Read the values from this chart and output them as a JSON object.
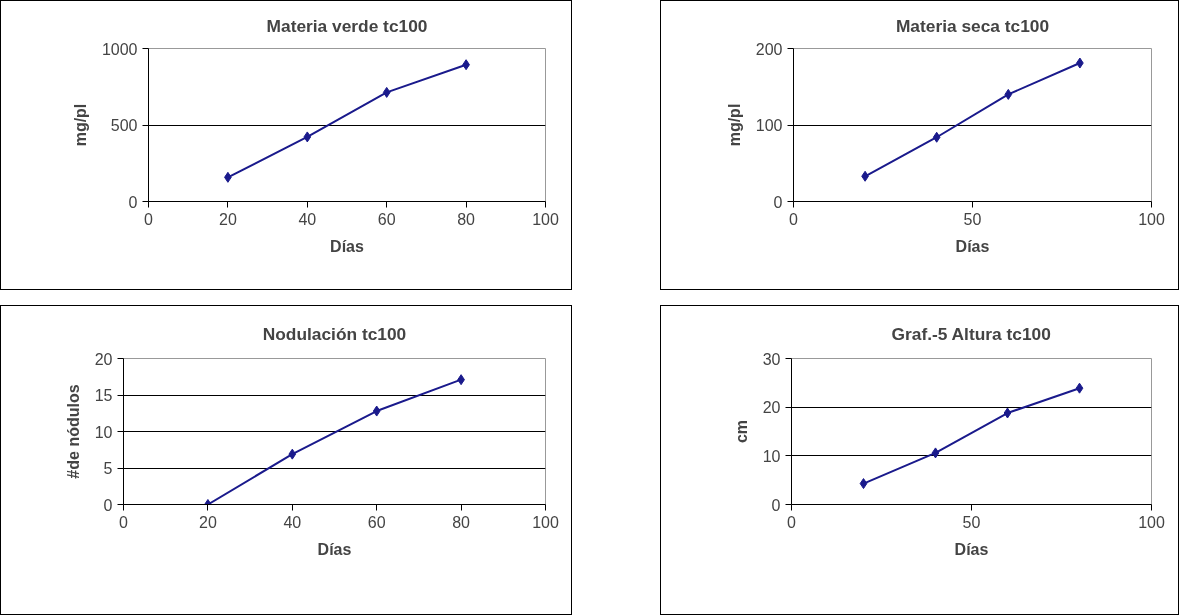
{
  "chart_data": [
    {
      "type": "line",
      "title": "Materia verde tc100",
      "xlabel": "Días",
      "ylabel": "mg/pl",
      "x": [
        20,
        40,
        60,
        80
      ],
      "series": [
        {
          "color": "#1a1a8c",
          "values": [
            158,
            422,
            713,
            894
          ]
        }
      ],
      "xlim": [
        0,
        100
      ],
      "xticks": [
        0,
        20,
        40,
        60,
        80,
        100
      ],
      "ylim": [
        0,
        1000
      ],
      "yticks": [
        0,
        500,
        1000
      ],
      "grid": "y",
      "marker": "diamond"
    },
    {
      "type": "line",
      "title": "Materia seca tc100",
      "xlabel": "Días",
      "ylabel": "mg/pl",
      "x": [
        20,
        40,
        60,
        80
      ],
      "series": [
        {
          "color": "#1a1a8c",
          "values": [
            33,
            84,
            140,
            181
          ]
        }
      ],
      "xlim": [
        0,
        100
      ],
      "xticks": [
        0,
        50,
        100
      ],
      "ylim": [
        0,
        200
      ],
      "yticks": [
        0,
        100,
        200
      ],
      "grid": "y",
      "marker": "diamond"
    },
    {
      "type": "line",
      "title": "Nodulación tc100",
      "xlabel": "Días",
      "ylabel": "#de nódulos",
      "x": [
        20,
        40,
        60,
        80
      ],
      "series": [
        {
          "color": "#1a1a8c",
          "values": [
            0,
            6.9,
            12.8,
            17.1
          ]
        }
      ],
      "xlim": [
        0,
        100
      ],
      "xticks": [
        0,
        20,
        40,
        60,
        80,
        100
      ],
      "ylim": [
        0,
        20
      ],
      "yticks": [
        0,
        5,
        10,
        15,
        20
      ],
      "grid": "y",
      "marker": "diamond"
    },
    {
      "type": "line",
      "title": "Graf.-5 Altura tc100",
      "xlabel": "Días",
      "ylabel": "cm",
      "x": [
        20,
        40,
        60,
        80
      ],
      "series": [
        {
          "color": "#1a1a8c",
          "values": [
            4.3,
            10.6,
            18.8,
            23.9
          ]
        }
      ],
      "xlim": [
        0,
        100
      ],
      "xticks": [
        0,
        50,
        100
      ],
      "ylim": [
        0,
        30
      ],
      "yticks": [
        0,
        10,
        20,
        30
      ],
      "grid": "y",
      "marker": "diamond"
    }
  ]
}
